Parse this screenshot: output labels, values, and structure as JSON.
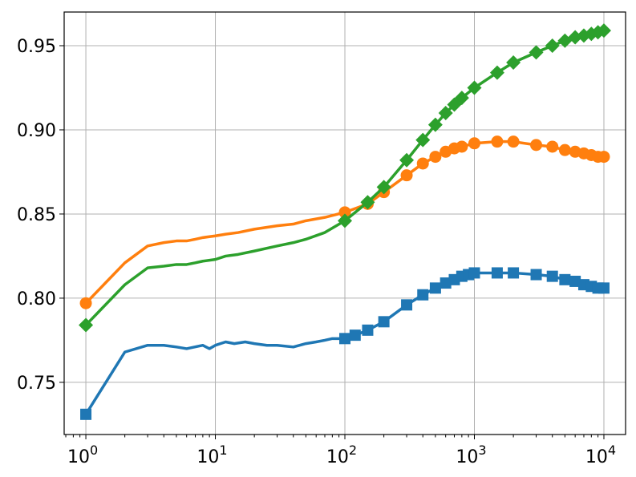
{
  "chart_data": {
    "type": "line",
    "title": "",
    "xlabel": "",
    "ylabel": "",
    "xscale": "log",
    "xlim": [
      0.68,
      14700
    ],
    "ylim": [
      0.719,
      0.97
    ],
    "grid": true,
    "legend": "none",
    "x_ticks": [
      {
        "value": 1,
        "base": "10",
        "exp": "0"
      },
      {
        "value": 10,
        "base": "10",
        "exp": "1"
      },
      {
        "value": 100,
        "base": "10",
        "exp": "2"
      },
      {
        "value": 1000,
        "base": "10",
        "exp": "3"
      },
      {
        "value": 10000,
        "base": "10",
        "exp": "4"
      }
    ],
    "y_ticks": [
      {
        "value": 0.75,
        "label": "0.75"
      },
      {
        "value": 0.8,
        "label": "0.80"
      },
      {
        "value": 0.85,
        "label": "0.85"
      },
      {
        "value": 0.9,
        "label": "0.90"
      },
      {
        "value": 0.95,
        "label": "0.95"
      }
    ],
    "series": [
      {
        "color": "#1f77b4",
        "marker": "square",
        "points": [
          [
            1,
            0.731
          ],
          [
            2,
            0.768
          ],
          [
            3,
            0.772
          ],
          [
            4,
            0.772
          ],
          [
            5,
            0.771
          ],
          [
            6,
            0.77
          ],
          [
            8,
            0.772
          ],
          [
            9,
            0.77
          ],
          [
            10,
            0.772
          ],
          [
            12,
            0.774
          ],
          [
            14,
            0.773
          ],
          [
            17,
            0.774
          ],
          [
            20,
            0.773
          ],
          [
            25,
            0.772
          ],
          [
            30,
            0.772
          ],
          [
            40,
            0.771
          ],
          [
            50,
            0.773
          ],
          [
            60,
            0.774
          ],
          [
            70,
            0.775
          ],
          [
            80,
            0.776
          ],
          [
            90,
            0.776
          ],
          [
            100,
            0.776
          ],
          [
            120,
            0.778
          ],
          [
            150,
            0.781
          ],
          [
            200,
            0.786
          ],
          [
            300,
            0.796
          ],
          [
            400,
            0.802
          ],
          [
            500,
            0.806
          ],
          [
            600,
            0.809
          ],
          [
            700,
            0.811
          ],
          [
            800,
            0.813
          ],
          [
            900,
            0.814
          ],
          [
            1000,
            0.815
          ],
          [
            1500,
            0.815
          ],
          [
            2000,
            0.815
          ],
          [
            3000,
            0.814
          ],
          [
            4000,
            0.813
          ],
          [
            5000,
            0.811
          ],
          [
            6000,
            0.81
          ],
          [
            7000,
            0.808
          ],
          [
            8000,
            0.807
          ],
          [
            9000,
            0.806
          ],
          [
            10000,
            0.806
          ]
        ]
      },
      {
        "color": "#ff7f0e",
        "marker": "circle",
        "points": [
          [
            1,
            0.797
          ],
          [
            2,
            0.821
          ],
          [
            3,
            0.831
          ],
          [
            4,
            0.833
          ],
          [
            5,
            0.834
          ],
          [
            6,
            0.834
          ],
          [
            7,
            0.835
          ],
          [
            8,
            0.836
          ],
          [
            10,
            0.837
          ],
          [
            12,
            0.838
          ],
          [
            15,
            0.839
          ],
          [
            20,
            0.841
          ],
          [
            30,
            0.843
          ],
          [
            40,
            0.844
          ],
          [
            50,
            0.846
          ],
          [
            70,
            0.848
          ],
          [
            100,
            0.851
          ],
          [
            150,
            0.856
          ],
          [
            200,
            0.863
          ],
          [
            300,
            0.873
          ],
          [
            400,
            0.88
          ],
          [
            500,
            0.884
          ],
          [
            600,
            0.887
          ],
          [
            700,
            0.889
          ],
          [
            800,
            0.89
          ],
          [
            1000,
            0.892
          ],
          [
            1500,
            0.893
          ],
          [
            2000,
            0.893
          ],
          [
            3000,
            0.891
          ],
          [
            4000,
            0.89
          ],
          [
            5000,
            0.888
          ],
          [
            6000,
            0.887
          ],
          [
            7000,
            0.886
          ],
          [
            8000,
            0.885
          ],
          [
            9000,
            0.884
          ],
          [
            10000,
            0.884
          ]
        ]
      },
      {
        "color": "#2ca02c",
        "marker": "diamond",
        "points": [
          [
            1,
            0.784
          ],
          [
            2,
            0.808
          ],
          [
            3,
            0.818
          ],
          [
            4,
            0.819
          ],
          [
            5,
            0.82
          ],
          [
            6,
            0.82
          ],
          [
            7,
            0.821
          ],
          [
            8,
            0.822
          ],
          [
            10,
            0.823
          ],
          [
            12,
            0.825
          ],
          [
            15,
            0.826
          ],
          [
            20,
            0.828
          ],
          [
            30,
            0.831
          ],
          [
            40,
            0.833
          ],
          [
            50,
            0.835
          ],
          [
            70,
            0.839
          ],
          [
            100,
            0.846
          ],
          [
            150,
            0.857
          ],
          [
            200,
            0.866
          ],
          [
            300,
            0.882
          ],
          [
            400,
            0.894
          ],
          [
            500,
            0.903
          ],
          [
            600,
            0.91
          ],
          [
            700,
            0.915
          ],
          [
            800,
            0.919
          ],
          [
            1000,
            0.925
          ],
          [
            1500,
            0.934
          ],
          [
            2000,
            0.94
          ],
          [
            3000,
            0.946
          ],
          [
            4000,
            0.95
          ],
          [
            5000,
            0.953
          ],
          [
            6000,
            0.955
          ],
          [
            7000,
            0.956
          ],
          [
            8000,
            0.957
          ],
          [
            9000,
            0.958
          ],
          [
            10000,
            0.959
          ]
        ]
      }
    ]
  }
}
